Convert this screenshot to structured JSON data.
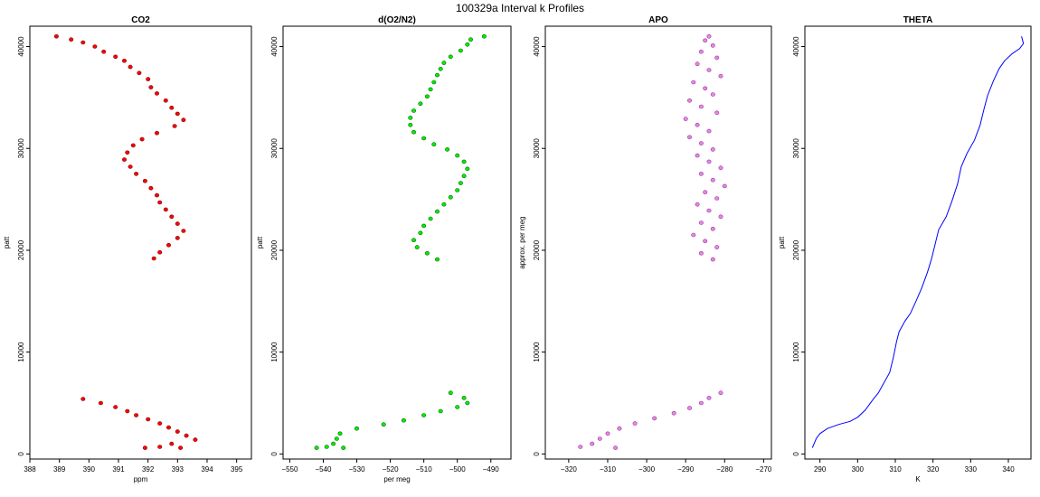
{
  "figure": {
    "title": "100329a   Interval k Profiles"
  },
  "chart_data": [
    {
      "type": "scatter",
      "title": "CO2",
      "xlabel": "ppm",
      "ylabel": "patt",
      "xlim": [
        388,
        395.5
      ],
      "ylim": [
        -500,
        42000
      ],
      "xticks": [
        388,
        389,
        390,
        391,
        392,
        393,
        394,
        395
      ],
      "yticks": [
        0,
        10000,
        20000,
        30000,
        40000
      ],
      "colors": {
        "fill": "#ff0000",
        "edge": "#7a0000"
      },
      "series": [
        {
          "points": [
            [
              388.9,
              41000
            ],
            [
              389.4,
              40700
            ],
            [
              389.8,
              40400
            ],
            [
              390.2,
              40000
            ],
            [
              390.5,
              39500
            ],
            [
              390.9,
              39000
            ],
            [
              391.2,
              38600
            ],
            [
              391.4,
              38000
            ],
            [
              391.7,
              37400
            ],
            [
              392.0,
              36800
            ],
            [
              392.1,
              36000
            ],
            [
              392.3,
              35400
            ],
            [
              392.6,
              34700
            ],
            [
              392.8,
              34000
            ],
            [
              393.0,
              33400
            ],
            [
              393.2,
              32800
            ],
            [
              392.9,
              32200
            ],
            [
              392.3,
              31500
            ],
            [
              391.8,
              30900
            ],
            [
              391.5,
              30300
            ],
            [
              391.3,
              29600
            ],
            [
              391.2,
              28900
            ],
            [
              391.4,
              28200
            ],
            [
              391.6,
              27500
            ],
            [
              391.9,
              26800
            ],
            [
              392.1,
              26100
            ],
            [
              392.3,
              25400
            ],
            [
              392.4,
              24700
            ],
            [
              392.6,
              24000
            ],
            [
              392.8,
              23300
            ],
            [
              393.0,
              22600
            ],
            [
              393.2,
              21900
            ],
            [
              393.0,
              21200
            ],
            [
              392.7,
              20500
            ],
            [
              392.4,
              19800
            ],
            [
              392.2,
              19200
            ],
            [
              389.8,
              5400
            ],
            [
              390.4,
              5000
            ],
            [
              390.9,
              4600
            ],
            [
              391.3,
              4200
            ],
            [
              391.6,
              3800
            ],
            [
              392.0,
              3400
            ],
            [
              392.4,
              3000
            ],
            [
              392.7,
              2600
            ],
            [
              393.0,
              2200
            ],
            [
              393.3,
              1800
            ],
            [
              393.6,
              1400
            ],
            [
              392.8,
              1000
            ],
            [
              392.4,
              700
            ],
            [
              391.9,
              600
            ],
            [
              393.1,
              600
            ]
          ]
        }
      ]
    },
    {
      "type": "scatter",
      "title": "d(O2/N2)",
      "xlabel": "per meg",
      "ylabel": "patt",
      "xlim": [
        -552,
        -484
      ],
      "ylim": [
        -500,
        42000
      ],
      "xticks": [
        -550,
        -540,
        -530,
        -520,
        -510,
        -500,
        -490
      ],
      "yticks": [
        0,
        10000,
        20000,
        30000,
        40000
      ],
      "colors": {
        "fill": "#00ee00",
        "edge": "#006400"
      },
      "series": [
        {
          "points": [
            [
              -492,
              41000
            ],
            [
              -496,
              40700
            ],
            [
              -497,
              40200
            ],
            [
              -499,
              39600
            ],
            [
              -502,
              39000
            ],
            [
              -504,
              38400
            ],
            [
              -505,
              37800
            ],
            [
              -506,
              37200
            ],
            [
              -507,
              36500
            ],
            [
              -508,
              35800
            ],
            [
              -509,
              35100
            ],
            [
              -511,
              34400
            ],
            [
              -513,
              33700
            ],
            [
              -514,
              33000
            ],
            [
              -514,
              32300
            ],
            [
              -513,
              31600
            ],
            [
              -510,
              31000
            ],
            [
              -507,
              30400
            ],
            [
              -503,
              29900
            ],
            [
              -500,
              29300
            ],
            [
              -498,
              28700
            ],
            [
              -497,
              28000
            ],
            [
              -498,
              27300
            ],
            [
              -499,
              26600
            ],
            [
              -500,
              25900
            ],
            [
              -502,
              25200
            ],
            [
              -504,
              24500
            ],
            [
              -506,
              23800
            ],
            [
              -508,
              23100
            ],
            [
              -510,
              22400
            ],
            [
              -511,
              21700
            ],
            [
              -513,
              21000
            ],
            [
              -512,
              20300
            ],
            [
              -509,
              19700
            ],
            [
              -506,
              19100
            ],
            [
              -502,
              6000
            ],
            [
              -498,
              5500
            ],
            [
              -497,
              5000
            ],
            [
              -500,
              4600
            ],
            [
              -505,
              4200
            ],
            [
              -510,
              3800
            ],
            [
              -516,
              3300
            ],
            [
              -522,
              2900
            ],
            [
              -530,
              2500
            ],
            [
              -535,
              2000
            ],
            [
              -536,
              1500
            ],
            [
              -537,
              1000
            ],
            [
              -539,
              700
            ],
            [
              -542,
              600
            ],
            [
              -534,
              600
            ]
          ]
        }
      ]
    },
    {
      "type": "scatter",
      "title": "APO",
      "xlabel": "",
      "ylabel": "approx. per meg",
      "xlim": [
        -326,
        -268
      ],
      "ylim": [
        -500,
        42000
      ],
      "xticks": [
        -320,
        -310,
        -300,
        -290,
        -280,
        -270
      ],
      "yticks": [
        0,
        10000,
        20000,
        30000,
        40000
      ],
      "colors": {
        "fill": "#ee82ee",
        "edge": "#8b3a8b"
      },
      "series": [
        {
          "points": [
            [
              -284,
              41000
            ],
            [
              -285,
              40600
            ],
            [
              -283,
              40100
            ],
            [
              -286,
              39500
            ],
            [
              -282,
              38900
            ],
            [
              -287,
              38300
            ],
            [
              -284,
              37700
            ],
            [
              -281,
              37100
            ],
            [
              -288,
              36500
            ],
            [
              -285,
              35900
            ],
            [
              -283,
              35300
            ],
            [
              -289,
              34700
            ],
            [
              -286,
              34100
            ],
            [
              -282,
              33500
            ],
            [
              -290,
              32900
            ],
            [
              -287,
              32300
            ],
            [
              -284,
              31700
            ],
            [
              -289,
              31100
            ],
            [
              -286,
              30500
            ],
            [
              -283,
              29900
            ],
            [
              -287,
              29300
            ],
            [
              -284,
              28700
            ],
            [
              -281,
              28100
            ],
            [
              -286,
              27500
            ],
            [
              -283,
              26900
            ],
            [
              -280,
              26300
            ],
            [
              -285,
              25700
            ],
            [
              -282,
              25100
            ],
            [
              -287,
              24500
            ],
            [
              -284,
              23900
            ],
            [
              -281,
              23300
            ],
            [
              -286,
              22700
            ],
            [
              -283,
              22100
            ],
            [
              -288,
              21500
            ],
            [
              -285,
              20900
            ],
            [
              -282,
              20300
            ],
            [
              -286,
              19700
            ],
            [
              -283,
              19100
            ],
            [
              -281,
              6000
            ],
            [
              -284,
              5500
            ],
            [
              -286,
              5000
            ],
            [
              -289,
              4500
            ],
            [
              -293,
              4000
            ],
            [
              -298,
              3500
            ],
            [
              -303,
              3000
            ],
            [
              -307,
              2500
            ],
            [
              -310,
              2000
            ],
            [
              -312,
              1500
            ],
            [
              -314,
              1000
            ],
            [
              -317,
              700
            ],
            [
              -308,
              600
            ]
          ]
        }
      ]
    },
    {
      "type": "line",
      "title": "THETA",
      "xlabel": "K",
      "ylabel": "patt",
      "xlim": [
        286,
        346
      ],
      "ylim": [
        -500,
        42000
      ],
      "xticks": [
        290,
        300,
        310,
        320,
        330,
        340
      ],
      "yticks": [
        0,
        10000,
        20000,
        30000,
        40000
      ],
      "colors": {
        "line": "#0000ff"
      },
      "series": [
        {
          "points": [
            [
              288,
              600
            ],
            [
              289,
              1500
            ],
            [
              290,
              2000
            ],
            [
              292,
              2500
            ],
            [
              295,
              2900
            ],
            [
              298,
              3200
            ],
            [
              300,
              3600
            ],
            [
              302,
              4300
            ],
            [
              304,
              5300
            ],
            [
              305.5,
              6000
            ],
            [
              307,
              7000
            ],
            [
              308.5,
              8000
            ],
            [
              309.5,
              9500
            ],
            [
              310.3,
              11000
            ],
            [
              311,
              12000
            ],
            [
              312.5,
              13000
            ],
            [
              314,
              13800
            ],
            [
              315.5,
              15000
            ],
            [
              317,
              16300
            ],
            [
              318.5,
              17800
            ],
            [
              319.5,
              19000
            ],
            [
              320.5,
              20500
            ],
            [
              321.5,
              22000
            ],
            [
              323.5,
              23300
            ],
            [
              325,
              24800
            ],
            [
              326.5,
              26500
            ],
            [
              327.5,
              28200
            ],
            [
              329,
              29500
            ],
            [
              331,
              30800
            ],
            [
              332.5,
              32300
            ],
            [
              333.5,
              33800
            ],
            [
              334.5,
              35200
            ],
            [
              336,
              36600
            ],
            [
              337.5,
              37800
            ],
            [
              339,
              38600
            ],
            [
              341,
              39300
            ],
            [
              343,
              39800
            ],
            [
              344,
              40300
            ],
            [
              343.5,
              41000
            ]
          ]
        }
      ]
    }
  ]
}
